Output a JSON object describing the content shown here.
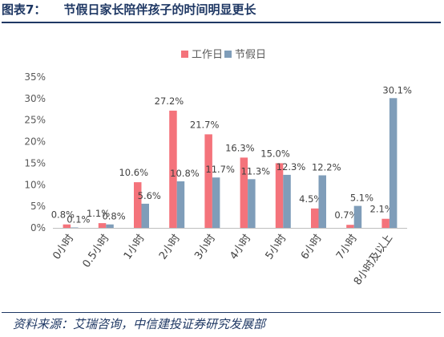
{
  "figure": {
    "number": "图表7：",
    "title": "节假日家长陪伴孩子的时间明显更长",
    "source": "资料来源：艾瑞咨询，中信建投证券研究发展部"
  },
  "chart_data": {
    "type": "bar",
    "categories": [
      "0小时",
      "0.5小时",
      "1小时",
      "2小时",
      "3小时",
      "4小时",
      "5小时",
      "6小时",
      "7小时",
      "8小时及以上"
    ],
    "series": [
      {
        "name": "工作日",
        "color": "#f4737b",
        "values": [
          0.8,
          1.1,
          10.6,
          27.2,
          21.7,
          16.3,
          15.0,
          4.5,
          0.7,
          2.1
        ]
      },
      {
        "name": "节假日",
        "color": "#7f9db9",
        "values": [
          0.1,
          0.8,
          5.6,
          10.8,
          11.7,
          11.3,
          12.3,
          12.2,
          5.1,
          30.1
        ]
      }
    ],
    "y_ticks": [
      "0%",
      "5%",
      "10%",
      "15%",
      "20%",
      "25%",
      "30%",
      "35%"
    ],
    "ylim": [
      0,
      35
    ],
    "value_suffix": "%",
    "legend_position": "top",
    "grid": false
  }
}
